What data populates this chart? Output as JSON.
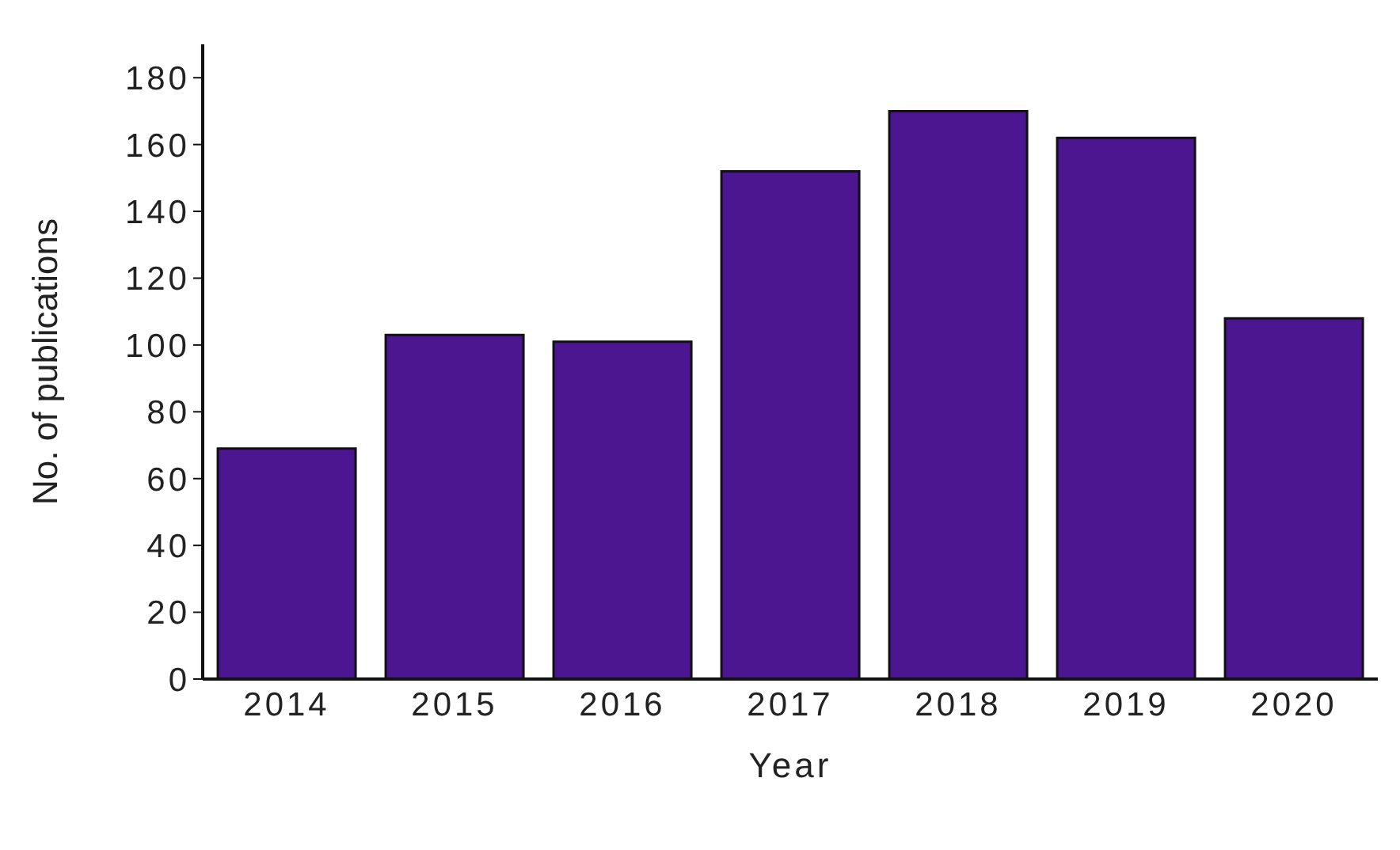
{
  "chart_data": {
    "type": "bar",
    "xlabel": "Year",
    "ylabel": "No. of publications",
    "categories": [
      "2014",
      "2015",
      "2016",
      "2017",
      "2018",
      "2019",
      "2020"
    ],
    "values": [
      69,
      103,
      101,
      152,
      170,
      162,
      108
    ],
    "color": "#4b168f",
    "ylim": [
      0,
      190
    ],
    "yticks": [
      0,
      20,
      40,
      60,
      80,
      100,
      120,
      140,
      160,
      180
    ],
    "grid": false
  }
}
